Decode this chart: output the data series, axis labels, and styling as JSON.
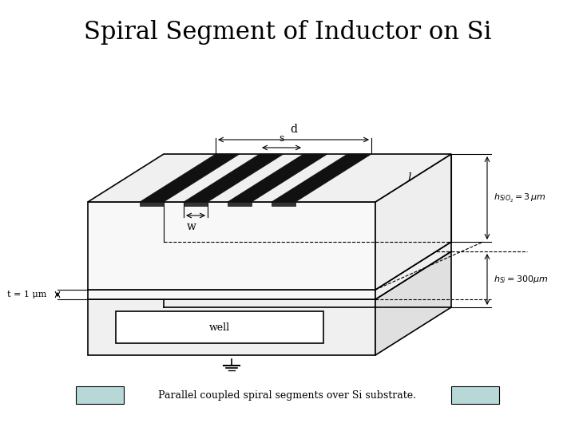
{
  "title": "Spiral Segment of Inductor on Si",
  "title_fontsize": 22,
  "background_color": "#ffffff",
  "caption_text": "Parallel coupled spiral segments over Si substrate.",
  "caption_box_color": "#b8d8d8",
  "labels": {
    "d": "d",
    "s": "s",
    "w": "w",
    "l": "l",
    "t": "t = 1 μm",
    "hSiO2": "h_{SiO_2} = 3 μm",
    "hSi": "h_{Si} = 300μm",
    "well": "well"
  }
}
